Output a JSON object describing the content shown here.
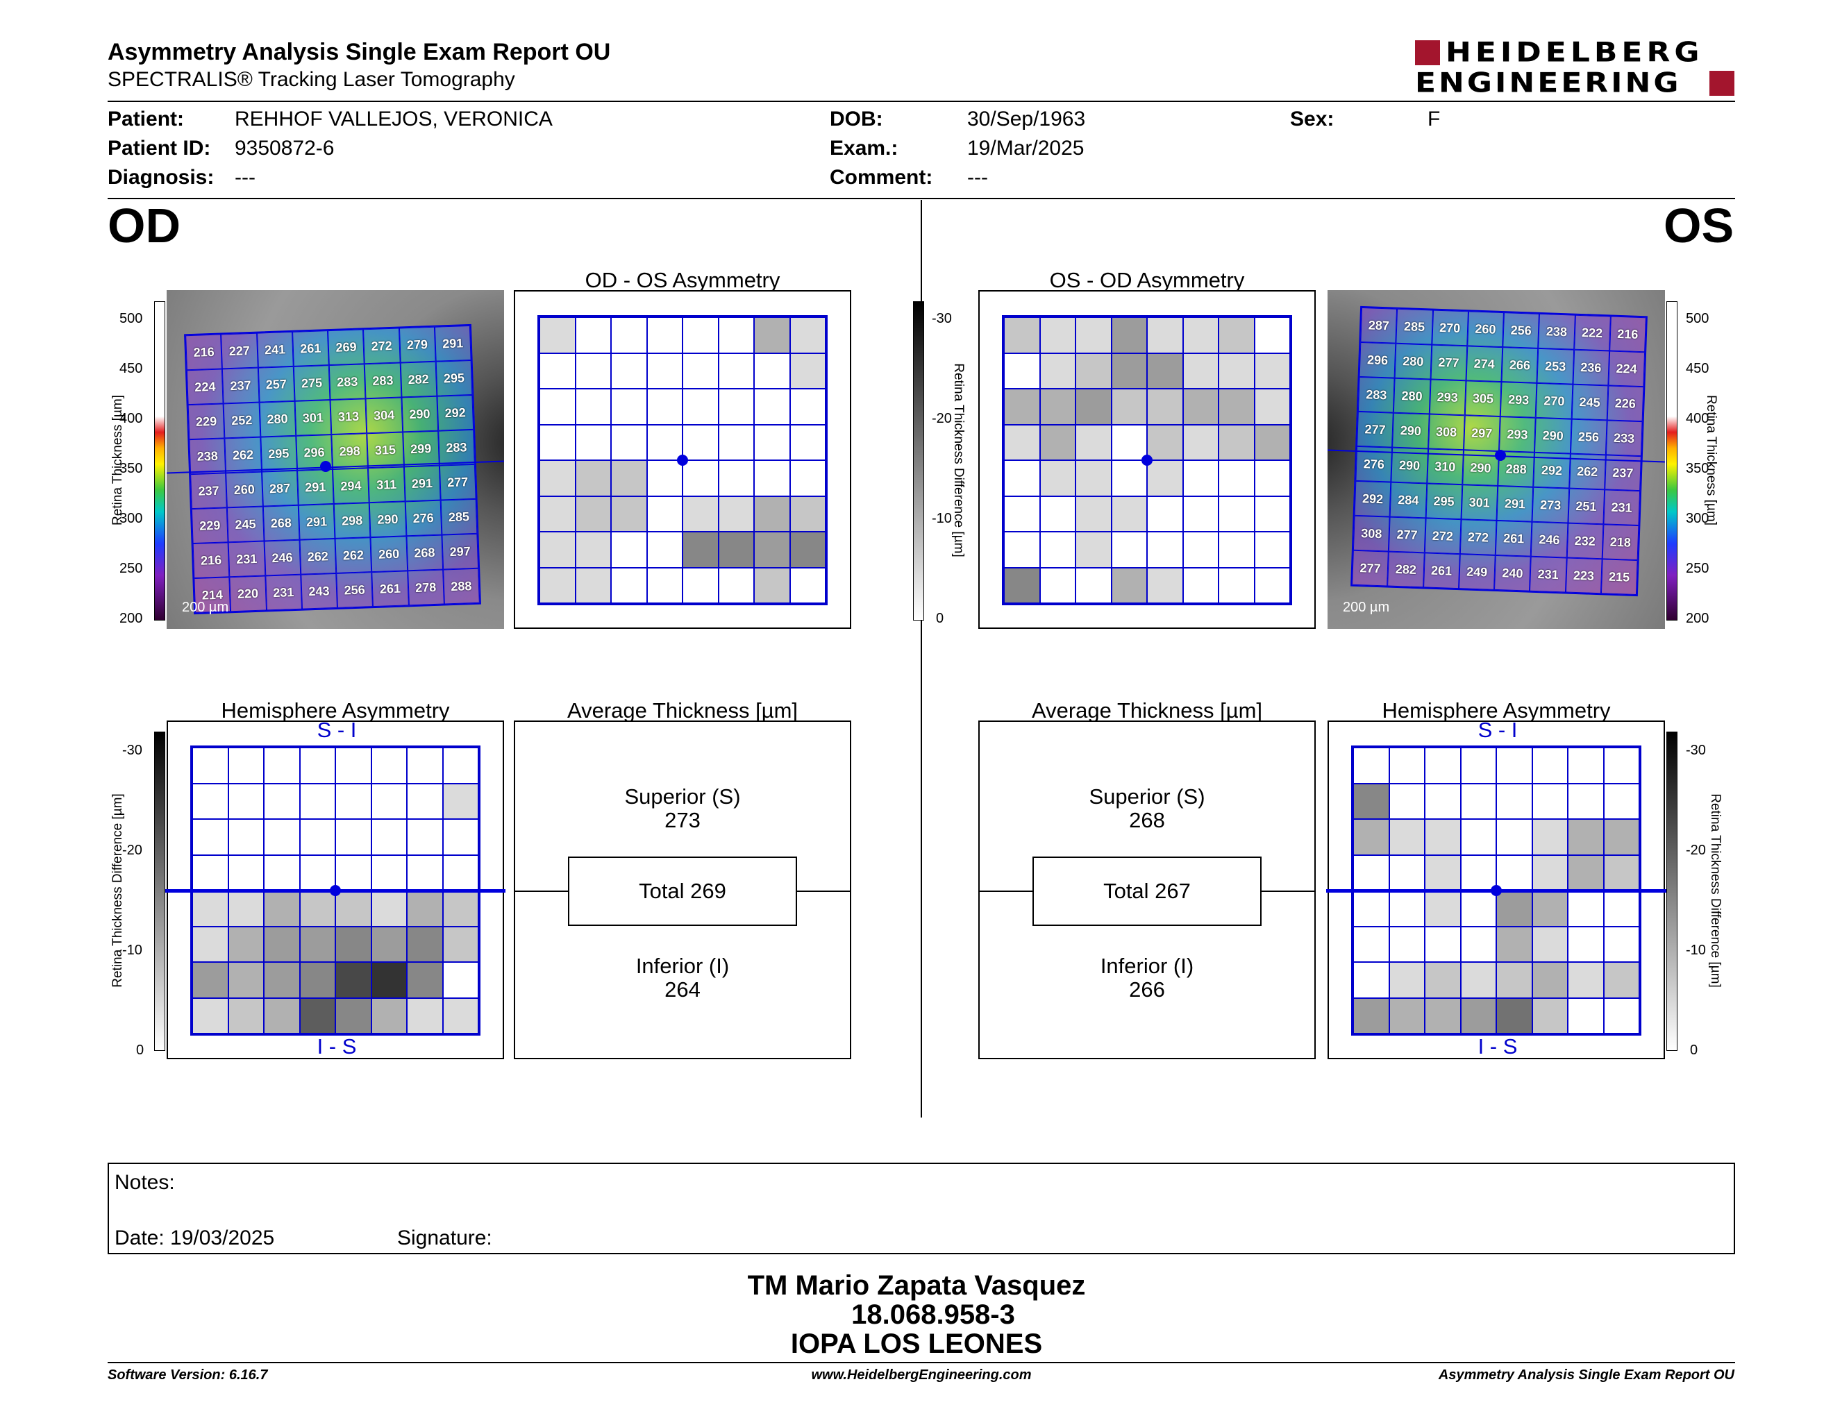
{
  "report": {
    "title": "Asymmetry Analysis Single Exam Report OU",
    "subtitle": "SPECTRALIS® Tracking Laser Tomography"
  },
  "brand": {
    "line1": "HEIDELBERG",
    "line2": "ENGINEERING",
    "color": "#a3152d"
  },
  "patient": {
    "patient_label": "Patient:",
    "patient": "REHHOF VALLEJOS, VERONICA",
    "id_label": "Patient ID:",
    "id": "9350872-6",
    "diag_label": "Diagnosis:",
    "diagnosis": "---",
    "dob_label": "DOB:",
    "dob": "30/Sep/1963",
    "exam_label": "Exam.:",
    "exam": "19/Mar/2025",
    "comment_label": "Comment:",
    "comment": "---",
    "sex_label": "Sex:",
    "sex": "F"
  },
  "od": {
    "label": "OD",
    "asym_title": "OD - OS Asymmetry",
    "hemi_title": "Hemisphere Asymmetry",
    "avg_title": "Average Thickness [µm]",
    "superior_label": "Superior (S)",
    "superior": "273",
    "total": "Total 269",
    "inferior_label": "Inferior (I)",
    "inferior": "264",
    "grid": [
      [
        216,
        227,
        241,
        261,
        269,
        272,
        279,
        291
      ],
      [
        224,
        237,
        257,
        275,
        283,
        283,
        282,
        295
      ],
      [
        229,
        252,
        280,
        301,
        313,
        304,
        290,
        292
      ],
      [
        238,
        262,
        295,
        296,
        298,
        315,
        299,
        283
      ],
      [
        237,
        260,
        287,
        291,
        294,
        311,
        291,
        277
      ],
      [
        229,
        245,
        268,
        291,
        298,
        290,
        276,
        285
      ],
      [
        216,
        231,
        246,
        262,
        262,
        260,
        268,
        297
      ],
      [
        214,
        220,
        231,
        243,
        256,
        261,
        278,
        288
      ]
    ],
    "asym": [
      [
        1,
        0,
        0,
        0,
        0,
        0,
        3,
        1
      ],
      [
        0,
        0,
        0,
        0,
        0,
        0,
        0,
        1
      ],
      [
        0,
        0,
        0,
        0,
        0,
        0,
        0,
        0
      ],
      [
        0,
        0,
        0,
        0,
        0,
        0,
        0,
        0
      ],
      [
        1,
        2,
        2,
        0,
        0,
        0,
        0,
        0
      ],
      [
        1,
        2,
        2,
        0,
        1,
        1,
        3,
        2
      ],
      [
        1,
        1,
        0,
        0,
        5,
        5,
        4,
        5
      ],
      [
        1,
        1,
        0,
        0,
        0,
        0,
        2,
        0
      ]
    ],
    "hemi": [
      [
        0,
        0,
        0,
        0,
        0,
        0,
        0,
        0
      ],
      [
        0,
        0,
        0,
        0,
        0,
        0,
        0,
        1
      ],
      [
        0,
        0,
        0,
        0,
        0,
        0,
        0,
        0
      ],
      [
        0,
        0,
        0,
        0,
        0,
        0,
        0,
        0
      ],
      [
        1,
        1,
        3,
        2,
        2,
        1,
        3,
        2
      ],
      [
        1,
        3,
        4,
        4,
        5,
        4,
        5,
        2
      ],
      [
        4,
        3,
        4,
        5,
        8,
        9,
        5,
        0
      ],
      [
        1,
        2,
        3,
        7,
        5,
        3,
        1,
        1
      ]
    ]
  },
  "os": {
    "label": "OS",
    "asym_title": "OS - OD Asymmetry",
    "hemi_title": "Hemisphere Asymmetry",
    "avg_title": "Average Thickness [µm]",
    "superior_label": "Superior (S)",
    "superior": "268",
    "total": "Total 267",
    "inferior_label": "Inferior (I)",
    "inferior": "266",
    "grid": [
      [
        287,
        285,
        270,
        260,
        256,
        238,
        222,
        216
      ],
      [
        296,
        280,
        277,
        274,
        266,
        253,
        236,
        224
      ],
      [
        283,
        280,
        293,
        305,
        293,
        270,
        245,
        226
      ],
      [
        277,
        290,
        308,
        297,
        293,
        290,
        256,
        233
      ],
      [
        276,
        290,
        310,
        290,
        288,
        292,
        262,
        237
      ],
      [
        292,
        284,
        295,
        301,
        291,
        273,
        251,
        231
      ],
      [
        308,
        277,
        272,
        272,
        261,
        246,
        232,
        218
      ],
      [
        277,
        282,
        261,
        249,
        240,
        231,
        223,
        215
      ]
    ],
    "asym": [
      [
        2,
        1,
        1,
        4,
        1,
        1,
        2,
        0
      ],
      [
        0,
        1,
        2,
        4,
        4,
        1,
        1,
        1
      ],
      [
        3,
        3,
        4,
        2,
        2,
        3,
        3,
        1
      ],
      [
        1,
        3,
        1,
        0,
        2,
        1,
        2,
        3
      ],
      [
        0,
        1,
        1,
        0,
        1,
        0,
        0,
        0
      ],
      [
        0,
        0,
        1,
        1,
        0,
        0,
        0,
        0
      ],
      [
        0,
        0,
        1,
        0,
        0,
        0,
        0,
        0
      ],
      [
        5,
        0,
        0,
        3,
        1,
        0,
        0,
        0
      ]
    ],
    "hemi": [
      [
        0,
        0,
        0,
        0,
        0,
        0,
        0,
        0
      ],
      [
        5,
        0,
        0,
        0,
        0,
        0,
        0,
        0
      ],
      [
        3,
        1,
        1,
        0,
        0,
        1,
        3,
        3
      ],
      [
        0,
        0,
        1,
        0,
        0,
        1,
        3,
        2
      ],
      [
        0,
        0,
        1,
        0,
        4,
        3,
        0,
        0
      ],
      [
        0,
        0,
        0,
        0,
        3,
        1,
        0,
        0
      ],
      [
        0,
        1,
        2,
        1,
        2,
        3,
        1,
        2
      ],
      [
        4,
        3,
        3,
        4,
        6,
        2,
        0,
        0
      ]
    ]
  },
  "scales": {
    "thickness_label": "Retina Thickness [µm]",
    "thickness_ticks": [
      "500",
      "450",
      "400",
      "350",
      "300",
      "250",
      "200"
    ],
    "diff_label": "Retina Thickness Difference [µm]",
    "diff_ticks": [
      "-30",
      "-20",
      "-10",
      "0"
    ],
    "scale_bar": "200 µm",
    "s_i": "S - I",
    "i_s": "I - S"
  },
  "notes": {
    "notes_label": "Notes:",
    "date_label": "Date: 19/03/2025",
    "signature_label": "Signature:"
  },
  "stamp": {
    "name": "TM Mario Zapata Vasquez",
    "rut": "18.068.958-3",
    "place": "IOPA LOS LEONES"
  },
  "footer": {
    "software": "Software Version: 6.16.7",
    "website": "www.HeidelbergEngineering.com",
    "report": "Asymmetry Analysis Single Exam Report OU"
  }
}
